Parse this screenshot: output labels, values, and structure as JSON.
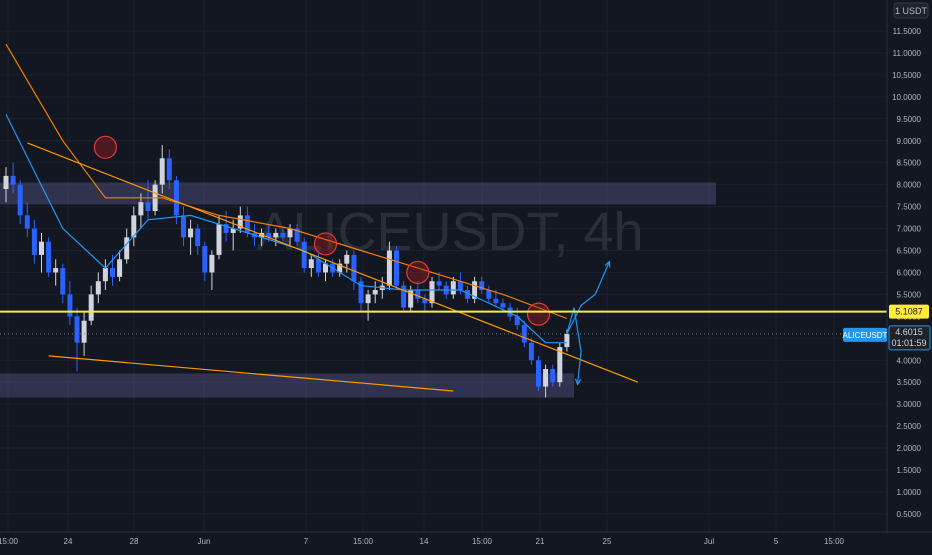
{
  "chart": {
    "watermark": "ALICEUSDT, 4h",
    "currency_label": "1 USDT",
    "price_tag": {
      "symbol": "ALICEUSDT",
      "price": "4.6015",
      "countdown": "01:01:59"
    },
    "level_tag": "5.1087"
  },
  "colors": {
    "background": "#131722",
    "bull": "#d1d4dc",
    "bear": "#2962ff",
    "ma_fast": "#2196f3",
    "ma_slow": "#f57c00",
    "trendline": "#ff9800",
    "level_line": "#ffeb3b",
    "zone_fill": "#4a4a72",
    "circle": "#b71c1c"
  },
  "chart_data": {
    "type": "candlestick",
    "symbol": "ALICEUSDT",
    "timeframe": "4h",
    "y_axis": {
      "min": 0.25,
      "max": 12.25,
      "ticks": [
        "11.5000",
        "11.0000",
        "10.5000",
        "10.0000",
        "9.5000",
        "9.0000",
        "8.5000",
        "8.0000",
        "7.5000",
        "7.0000",
        "6.5000",
        "6.0000",
        "5.5000",
        "5.0000",
        "4.5000",
        "4.0000",
        "3.5000",
        "3.0000",
        "2.5000",
        "2.0000",
        "1.5000",
        "1.0000",
        "0.5000"
      ]
    },
    "x_axis": {
      "ticks": [
        "15:00",
        "24",
        "28",
        "Jun",
        "7",
        "15:00",
        "14",
        "15:00",
        "21",
        "25",
        "Jul",
        "5",
        "15:00"
      ]
    },
    "current_price": 4.6015,
    "horizontal_level": 5.1087,
    "candles": [
      [
        0,
        7.9,
        8.4,
        7.6,
        8.2
      ],
      [
        1,
        8.2,
        8.5,
        7.8,
        8.0
      ],
      [
        2,
        8.0,
        8.1,
        7.1,
        7.3
      ],
      [
        3,
        7.3,
        7.6,
        6.8,
        7.0
      ],
      [
        4,
        7.0,
        7.2,
        6.2,
        6.4
      ],
      [
        5,
        6.4,
        6.9,
        6.0,
        6.7
      ],
      [
        6,
        6.7,
        6.8,
        5.9,
        6.0
      ],
      [
        7,
        6.0,
        6.3,
        5.7,
        6.1
      ],
      [
        8,
        6.1,
        6.2,
        5.3,
        5.5
      ],
      [
        9,
        5.5,
        5.8,
        4.8,
        5.0
      ],
      [
        10,
        5.0,
        5.2,
        3.75,
        4.4
      ],
      [
        11,
        4.4,
        5.1,
        4.1,
        4.9
      ],
      [
        12,
        4.9,
        5.7,
        4.8,
        5.5
      ],
      [
        13,
        5.5,
        6.0,
        5.3,
        5.8
      ],
      [
        14,
        5.8,
        6.3,
        5.6,
        6.1
      ],
      [
        15,
        6.1,
        6.4,
        5.7,
        5.9
      ],
      [
        16,
        5.9,
        6.5,
        5.8,
        6.3
      ],
      [
        17,
        6.3,
        7.0,
        6.2,
        6.8
      ],
      [
        18,
        6.8,
        7.5,
        6.6,
        7.3
      ],
      [
        19,
        7.3,
        7.8,
        7.0,
        7.6
      ],
      [
        20,
        7.6,
        8.1,
        7.2,
        7.4
      ],
      [
        21,
        7.4,
        8.1,
        7.3,
        8.0
      ],
      [
        22,
        8.0,
        8.9,
        7.8,
        8.6
      ],
      [
        23,
        8.6,
        8.8,
        7.9,
        8.1
      ],
      [
        24,
        8.1,
        8.2,
        7.1,
        7.3
      ],
      [
        25,
        7.3,
        7.5,
        6.6,
        6.8
      ],
      [
        26,
        6.8,
        7.2,
        6.4,
        7.0
      ],
      [
        27,
        7.0,
        7.1,
        6.4,
        6.6
      ],
      [
        28,
        6.6,
        6.7,
        5.8,
        6.0
      ],
      [
        29,
        6.0,
        6.5,
        5.6,
        6.4
      ],
      [
        30,
        6.4,
        7.3,
        6.3,
        7.1
      ],
      [
        31,
        7.1,
        7.4,
        6.7,
        6.9
      ],
      [
        32,
        6.9,
        7.2,
        6.5,
        7.0
      ],
      [
        33,
        7.0,
        7.5,
        6.9,
        7.3
      ],
      [
        34,
        7.3,
        7.5,
        6.8,
        6.9
      ],
      [
        35,
        6.9,
        7.1,
        6.6,
        6.8
      ],
      [
        36,
        6.8,
        7.0,
        6.6,
        6.9
      ],
      [
        37,
        6.9,
        7.1,
        6.7,
        6.8
      ],
      [
        38,
        6.8,
        7.0,
        6.6,
        6.9
      ],
      [
        39,
        6.9,
        7.0,
        6.7,
        6.8
      ],
      [
        40,
        6.8,
        7.1,
        6.6,
        7.0
      ],
      [
        41,
        7.0,
        7.1,
        6.6,
        6.7
      ],
      [
        42,
        6.7,
        6.8,
        6.0,
        6.1
      ],
      [
        43,
        6.1,
        6.4,
        5.9,
        6.3
      ],
      [
        44,
        6.3,
        6.5,
        5.9,
        6.0
      ],
      [
        45,
        6.0,
        6.3,
        5.8,
        6.2
      ],
      [
        46,
        6.2,
        6.3,
        5.9,
        6.0
      ],
      [
        47,
        6.0,
        6.3,
        5.9,
        6.2
      ],
      [
        48,
        6.2,
        6.5,
        6.0,
        6.4
      ],
      [
        49,
        6.4,
        6.5,
        5.6,
        5.8
      ],
      [
        50,
        5.8,
        5.9,
        5.1,
        5.3
      ],
      [
        51,
        5.3,
        5.6,
        4.9,
        5.5
      ],
      [
        52,
        5.5,
        5.8,
        5.3,
        5.6
      ],
      [
        53,
        5.6,
        5.9,
        5.4,
        5.7
      ],
      [
        54,
        5.7,
        6.7,
        5.6,
        6.5
      ],
      [
        55,
        6.5,
        6.6,
        5.6,
        5.7
      ],
      [
        56,
        5.7,
        5.8,
        5.1,
        5.2
      ],
      [
        57,
        5.2,
        5.7,
        5.1,
        5.6
      ],
      [
        58,
        5.6,
        5.8,
        5.3,
        5.4
      ],
      [
        59,
        5.4,
        5.5,
        5.1,
        5.3
      ],
      [
        60,
        5.3,
        5.9,
        5.2,
        5.8
      ],
      [
        61,
        5.8,
        6.0,
        5.6,
        5.7
      ],
      [
        62,
        5.7,
        5.8,
        5.4,
        5.5
      ],
      [
        63,
        5.5,
        5.9,
        5.4,
        5.8
      ],
      [
        64,
        5.8,
        6.0,
        5.5,
        5.6
      ],
      [
        65,
        5.6,
        5.7,
        5.3,
        5.4
      ],
      [
        66,
        5.4,
        5.9,
        5.3,
        5.8
      ],
      [
        67,
        5.8,
        5.9,
        5.5,
        5.6
      ],
      [
        68,
        5.6,
        5.7,
        5.3,
        5.4
      ],
      [
        69,
        5.4,
        5.6,
        5.2,
        5.3
      ],
      [
        70,
        5.3,
        5.4,
        5.1,
        5.2
      ],
      [
        71,
        5.2,
        5.3,
        4.9,
        5.0
      ],
      [
        72,
        5.0,
        5.2,
        4.7,
        4.8
      ],
      [
        73,
        4.8,
        4.9,
        4.3,
        4.4
      ],
      [
        74,
        4.4,
        4.5,
        3.9,
        4.0
      ],
      [
        75,
        4.0,
        4.1,
        3.3,
        3.4
      ],
      [
        76,
        3.4,
        3.9,
        3.15,
        3.8
      ],
      [
        77,
        3.8,
        3.9,
        3.4,
        3.5
      ],
      [
        78,
        3.5,
        4.4,
        3.4,
        4.3
      ],
      [
        79,
        4.3,
        4.7,
        4.2,
        4.6
      ]
    ],
    "ma_fast": [
      [
        0,
        9.6
      ],
      [
        8,
        7.0
      ],
      [
        14,
        6.1
      ],
      [
        20,
        7.2
      ],
      [
        26,
        7.3
      ],
      [
        34,
        6.9
      ],
      [
        42,
        6.5
      ],
      [
        50,
        5.7
      ],
      [
        56,
        5.6
      ],
      [
        64,
        5.6
      ],
      [
        72,
        5.0
      ],
      [
        76,
        4.4
      ],
      [
        79,
        4.4
      ]
    ],
    "ma_slow": [
      [
        0,
        11.2
      ],
      [
        8,
        9.0
      ],
      [
        14,
        7.7
      ],
      [
        22,
        7.7
      ],
      [
        30,
        7.3
      ],
      [
        40,
        7.0
      ],
      [
        50,
        6.5
      ],
      [
        60,
        6.0
      ],
      [
        70,
        5.5
      ],
      [
        79,
        4.95
      ]
    ],
    "resistance_trendline": [
      [
        3,
        8.95
      ],
      [
        89,
        3.5
      ]
    ],
    "support_trendline": [
      [
        6,
        4.1
      ],
      [
        63,
        3.3
      ]
    ],
    "zones": [
      {
        "name": "upper",
        "x_from": -4,
        "x_to": 100,
        "y_from": 7.55,
        "y_to": 8.05
      },
      {
        "name": "lower",
        "x_from": -4,
        "x_to": 80,
        "y_from": 3.15,
        "y_to": 3.7
      }
    ],
    "circles": [
      [
        14,
        8.85
      ],
      [
        45,
        6.65
      ],
      [
        58,
        6.0
      ],
      [
        75,
        5.05
      ]
    ],
    "projection_up": [
      [
        79,
        4.6
      ],
      [
        81,
        5.25
      ],
      [
        83,
        5.5
      ],
      [
        85,
        6.25
      ]
    ],
    "projection_down": [
      [
        79,
        4.6
      ],
      [
        80,
        5.2
      ],
      [
        81,
        4.2
      ],
      [
        80.5,
        3.45
      ]
    ]
  }
}
